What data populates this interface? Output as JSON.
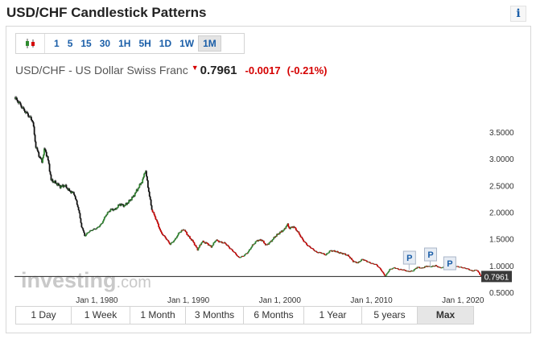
{
  "page": {
    "title": "USD/CHF Candlestick Patterns",
    "info_icon": "i"
  },
  "toolbar": {
    "chart_type_icon": "candlestick-icon",
    "intervals": [
      "1",
      "5",
      "15",
      "30",
      "1H",
      "5H",
      "1D",
      "1W",
      "1M"
    ],
    "active_interval": "1M"
  },
  "quote": {
    "name": "USD/CHF - US Dollar Swiss Franc",
    "direction_icon": "down-arrow-icon",
    "price": "0.7961",
    "change": "-0.0017",
    "change_pct": "(-0.21%)"
  },
  "watermark": {
    "brand": "investing",
    "suffix": ".com"
  },
  "range_buttons": [
    "1 Day",
    "1 Week",
    "1 Month",
    "3 Months",
    "6 Months",
    "1 Year",
    "5 years",
    "Max"
  ],
  "active_range": "Max",
  "colors": {
    "accent": "#1a5ea8",
    "down": "#d50000",
    "up": "#2e8b2e",
    "price_tag": "#3a3a3a"
  },
  "chart_data": {
    "type": "candlestick",
    "x_ticks": [
      "Jan 1, 1980",
      "Jan 1, 1990",
      "Jan 1, 2000",
      "Jan 1, 2010",
      "Jan 1, 2020"
    ],
    "y_ticks": [
      "3.5000",
      "3.0000",
      "2.5000",
      "2.0000",
      "1.5000",
      "1.0000",
      "0.5000"
    ],
    "ylim": [
      0.5,
      4.3
    ],
    "xlim": [
      1971.0,
      2022.0
    ],
    "last_price_label": "0.7961",
    "last_price": 0.7961,
    "marker_label": "P",
    "markers": [
      2013.5,
      2015.8,
      2017.9
    ],
    "series": [
      [
        1971.0,
        4.15
      ],
      [
        1971.5,
        4.05
      ],
      [
        1972.0,
        3.92
      ],
      [
        1972.5,
        3.82
      ],
      [
        1973.0,
        3.7
      ],
      [
        1973.3,
        3.25
      ],
      [
        1973.7,
        3.05
      ],
      [
        1974.0,
        2.95
      ],
      [
        1974.3,
        3.2
      ],
      [
        1974.7,
        2.95
      ],
      [
        1975.0,
        2.6
      ],
      [
        1975.5,
        2.55
      ],
      [
        1976.0,
        2.48
      ],
      [
        1976.5,
        2.5
      ],
      [
        1977.0,
        2.4
      ],
      [
        1977.5,
        2.35
      ],
      [
        1978.0,
        2.05
      ],
      [
        1978.3,
        1.75
      ],
      [
        1978.7,
        1.55
      ],
      [
        1979.0,
        1.62
      ],
      [
        1979.5,
        1.67
      ],
      [
        1980.0,
        1.7
      ],
      [
        1980.5,
        1.78
      ],
      [
        1981.0,
        1.95
      ],
      [
        1981.5,
        2.05
      ],
      [
        1982.0,
        2.05
      ],
      [
        1982.5,
        2.15
      ],
      [
        1983.0,
        2.12
      ],
      [
        1983.5,
        2.2
      ],
      [
        1984.0,
        2.3
      ],
      [
        1984.5,
        2.45
      ],
      [
        1985.0,
        2.6
      ],
      [
        1985.3,
        2.8
      ],
      [
        1985.7,
        2.35
      ],
      [
        1986.0,
        2.05
      ],
      [
        1986.5,
        1.85
      ],
      [
        1987.0,
        1.62
      ],
      [
        1987.5,
        1.52
      ],
      [
        1988.0,
        1.4
      ],
      [
        1988.5,
        1.48
      ],
      [
        1989.0,
        1.62
      ],
      [
        1989.5,
        1.68
      ],
      [
        1990.0,
        1.55
      ],
      [
        1990.5,
        1.45
      ],
      [
        1991.0,
        1.3
      ],
      [
        1991.5,
        1.45
      ],
      [
        1992.0,
        1.42
      ],
      [
        1992.5,
        1.35
      ],
      [
        1993.0,
        1.48
      ],
      [
        1993.5,
        1.44
      ],
      [
        1994.0,
        1.42
      ],
      [
        1994.5,
        1.33
      ],
      [
        1995.0,
        1.25
      ],
      [
        1995.5,
        1.15
      ],
      [
        1996.0,
        1.18
      ],
      [
        1996.5,
        1.25
      ],
      [
        1997.0,
        1.38
      ],
      [
        1997.5,
        1.47
      ],
      [
        1998.0,
        1.48
      ],
      [
        1998.5,
        1.38
      ],
      [
        1999.0,
        1.45
      ],
      [
        1999.5,
        1.55
      ],
      [
        2000.0,
        1.62
      ],
      [
        2000.5,
        1.68
      ],
      [
        2000.8,
        1.78
      ],
      [
        2001.0,
        1.7
      ],
      [
        2001.5,
        1.73
      ],
      [
        2002.0,
        1.62
      ],
      [
        2002.5,
        1.48
      ],
      [
        2003.0,
        1.38
      ],
      [
        2003.5,
        1.32
      ],
      [
        2004.0,
        1.25
      ],
      [
        2004.5,
        1.24
      ],
      [
        2005.0,
        1.2
      ],
      [
        2005.5,
        1.28
      ],
      [
        2006.0,
        1.27
      ],
      [
        2006.5,
        1.24
      ],
      [
        2007.0,
        1.22
      ],
      [
        2007.5,
        1.18
      ],
      [
        2008.0,
        1.08
      ],
      [
        2008.5,
        1.05
      ],
      [
        2009.0,
        1.12
      ],
      [
        2009.5,
        1.08
      ],
      [
        2010.0,
        1.04
      ],
      [
        2010.5,
        1.02
      ],
      [
        2011.0,
        0.93
      ],
      [
        2011.5,
        0.8
      ],
      [
        2012.0,
        0.93
      ],
      [
        2012.5,
        0.96
      ],
      [
        2013.0,
        0.93
      ],
      [
        2013.5,
        0.92
      ],
      [
        2014.0,
        0.89
      ],
      [
        2014.5,
        0.9
      ],
      [
        2015.0,
        0.97
      ],
      [
        2015.5,
        0.95
      ],
      [
        2016.0,
        0.99
      ],
      [
        2016.5,
        0.98
      ],
      [
        2017.0,
        1.0
      ],
      [
        2017.5,
        0.96
      ],
      [
        2018.0,
        0.97
      ],
      [
        2018.5,
        0.99
      ],
      [
        2019.0,
        0.99
      ],
      [
        2019.5,
        0.98
      ],
      [
        2020.0,
        0.96
      ],
      [
        2020.5,
        0.94
      ],
      [
        2021.0,
        0.9
      ],
      [
        2021.5,
        0.92
      ],
      [
        2022.0,
        0.8
      ]
    ]
  }
}
